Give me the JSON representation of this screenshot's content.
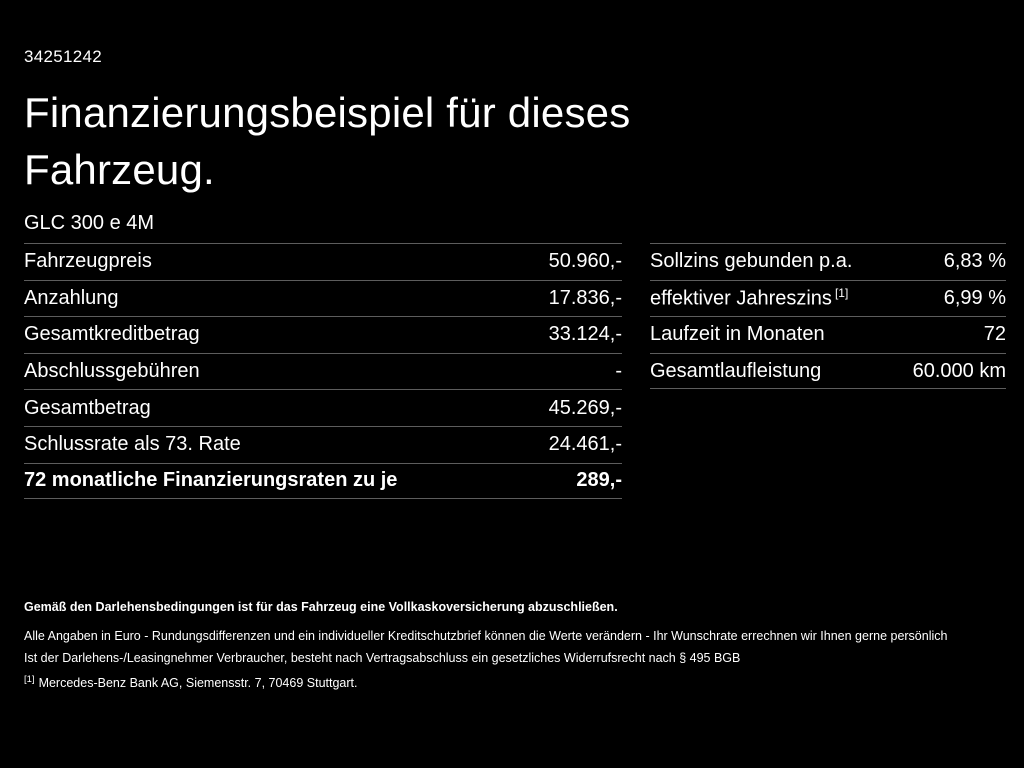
{
  "page": {
    "vehicle_id": "34251242",
    "title_line1": "Finanzierungsbeispiel für dieses",
    "title_line2": "Fahrzeug.",
    "vehicle_model": "GLC 300 e 4M"
  },
  "left_table": {
    "rows": [
      {
        "label": "Fahrzeugpreis",
        "value": "50.960,-"
      },
      {
        "label": "Anzahlung",
        "value": "17.836,-"
      },
      {
        "label": "Gesamtkreditbetrag",
        "value": "33.124,-"
      },
      {
        "label": "Abschlussgebühren",
        "value": "-"
      },
      {
        "label": "Gesamtbetrag",
        "value": "45.269,-"
      },
      {
        "label": "Schlussrate als 73. Rate",
        "value": "24.461,-"
      },
      {
        "label": "72 monatliche Finanzierungsraten zu je",
        "value": "289,-"
      }
    ]
  },
  "right_table": {
    "rows": [
      {
        "label": "Sollzins gebunden p.a.",
        "value": "6,83 %"
      },
      {
        "label": "effektiver Jahreszins",
        "sup": "[1]",
        "value": "6,99 %"
      },
      {
        "label": "Laufzeit in Monaten",
        "value": "72"
      },
      {
        "label": "Gesamtlaufleistung",
        "value": "60.000 km"
      }
    ]
  },
  "footnotes": {
    "insurance_note": "Gemäß den Darlehensbedingungen ist für das Fahrzeug eine Vollkaskoversicherung abzuschließen.",
    "euro_note": "Alle Angaben in Euro - Rundungsdifferenzen und ein individueller Kreditschutzbrief können die Werte verändern - Ihr Wunschrate errechnen wir Ihnen gerne persönlich",
    "withdrawal_note": "Ist der Darlehens-/Leasingnehmer Verbraucher, besteht nach Vertragsabschluss ein gesetzliches Widerrufsrecht nach § 495 BGB",
    "ref_marker": "[1]",
    "ref_text": "Mercedes-Benz Bank AG, Siemensstr. 7, 70469 Stuttgart."
  }
}
